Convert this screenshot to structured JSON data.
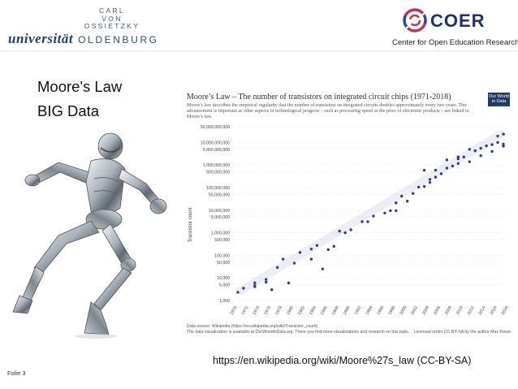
{
  "logo_university": {
    "small_lines": [
      "CARL",
      "VON",
      "OSSIETZKY"
    ],
    "word_main": "universität",
    "word_city": "OLDENBURG"
  },
  "logo_coer": {
    "brand": "COER",
    "subtitle": "Center for Open Education Research"
  },
  "bullets": [
    "Moore's Law",
    "BIG Data"
  ],
  "figure": {
    "title": "Moore’s Law – The number of transistors on integrated circuit chips (1971-2018)",
    "description": "Moore’s law describes the empirical regularity that the number of transistors on integrated circuits doubles approximately every two years. This advancement is important as other aspects of technological progress – such as processing speed or the price of electronic products – are linked to Moore’s law.",
    "badge": [
      "Our World",
      "in Data"
    ],
    "footer_source": "Data source: Wikipedia (https://en.wikipedia.org/wiki/Transistor_count)",
    "footer_note": "The data visualization is available at OurWorldinData.org. There you find more visualizations and research on this topic.",
    "footer_license": "Licensed under CC-BY-SA by the author Max Roser."
  },
  "chart_data": {
    "type": "scatter",
    "ylabel": "Transistor count",
    "y_scale": "log",
    "ylim": [
      1000,
      50000000000
    ],
    "xlim": [
      1970,
      2018
    ],
    "y_ticks": [
      "50,000,000,000",
      "10,000,000,000",
      "5,000,000,000",
      "1,000,000,000",
      "500,000,000",
      "100,000,000",
      "50,000,000",
      "10,000,000",
      "5,000,000",
      "1,000,000",
      "500,000",
      "100,000",
      "50,000",
      "10,000",
      "5,000",
      "1,000"
    ],
    "y_tick_values": [
      50000000000,
      10000000000,
      5000000000,
      1000000000,
      500000000,
      100000000,
      50000000,
      10000000,
      5000000,
      1000000,
      500000,
      100000,
      50000,
      10000,
      5000,
      1000
    ],
    "x_ticks": [
      "1970",
      "1972",
      "1974",
      "1976",
      "1978",
      "1980",
      "1982",
      "1984",
      "1986",
      "1988",
      "1990",
      "1992",
      "1994",
      "1996",
      "1998",
      "2000",
      "2002",
      "2004",
      "2006",
      "2008",
      "2010",
      "2012",
      "2014",
      "2016",
      "2018"
    ],
    "points": [
      {
        "x": 1971,
        "y": 2300
      },
      {
        "x": 1972,
        "y": 3500
      },
      {
        "x": 1974,
        "y": 4500
      },
      {
        "x": 1974,
        "y": 6000
      },
      {
        "x": 1976,
        "y": 6500
      },
      {
        "x": 1976,
        "y": 8500
      },
      {
        "x": 1978,
        "y": 29000
      },
      {
        "x": 1979,
        "y": 68000
      },
      {
        "x": 1981,
        "y": 45000
      },
      {
        "x": 1982,
        "y": 134000
      },
      {
        "x": 1984,
        "y": 190000
      },
      {
        "x": 1985,
        "y": 275000
      },
      {
        "x": 1986,
        "y": 25000
      },
      {
        "x": 1987,
        "y": 180000
      },
      {
        "x": 1988,
        "y": 250000
      },
      {
        "x": 1989,
        "y": 1180000
      },
      {
        "x": 1990,
        "y": 1000000
      },
      {
        "x": 1991,
        "y": 1350000
      },
      {
        "x": 1993,
        "y": 3100000
      },
      {
        "x": 1995,
        "y": 5500000
      },
      {
        "x": 1997,
        "y": 7500000
      },
      {
        "x": 1998,
        "y": 9500000
      },
      {
        "x": 1999,
        "y": 21000000
      },
      {
        "x": 2000,
        "y": 42000000
      },
      {
        "x": 2001,
        "y": 25000000
      },
      {
        "x": 2002,
        "y": 55000000
      },
      {
        "x": 2003,
        "y": 105000000
      },
      {
        "x": 2004,
        "y": 112000000
      },
      {
        "x": 2005,
        "y": 230000000
      },
      {
        "x": 2006,
        "y": 291000000
      },
      {
        "x": 2007,
        "y": 411000000
      },
      {
        "x": 2008,
        "y": 731000000
      },
      {
        "x": 2009,
        "y": 904000000
      },
      {
        "x": 2010,
        "y": 1170000000
      },
      {
        "x": 2010,
        "y": 2300000000
      },
      {
        "x": 2011,
        "y": 2270000000
      },
      {
        "x": 2012,
        "y": 1400000000
      },
      {
        "x": 2012,
        "y": 5000000000
      },
      {
        "x": 2013,
        "y": 4300000000
      },
      {
        "x": 2014,
        "y": 5560000000
      },
      {
        "x": 2015,
        "y": 7100000000
      },
      {
        "x": 2016,
        "y": 8000000000
      },
      {
        "x": 2017,
        "y": 19200000000
      },
      {
        "x": 2017,
        "y": 10000000000
      },
      {
        "x": 2018,
        "y": 6900000000
      },
      {
        "x": 2018,
        "y": 8500000000
      },
      {
        "x": 2018,
        "y": 23600000000
      },
      {
        "x": 2016,
        "y": 4000000000
      },
      {
        "x": 2014,
        "y": 2600000000
      },
      {
        "x": 2010,
        "y": 1900000000
      },
      {
        "x": 2008,
        "y": 1700000000
      },
      {
        "x": 2006,
        "y": 592000000
      },
      {
        "x": 2005,
        "y": 169000000
      },
      {
        "x": 2004,
        "y": 592000000
      },
      {
        "x": 1999,
        "y": 9500000
      },
      {
        "x": 1994,
        "y": 3100000
      },
      {
        "x": 1984,
        "y": 68000
      },
      {
        "x": 1977,
        "y": 3000
      },
      {
        "x": 1980,
        "y": 6000
      },
      {
        "x": 1974,
        "y": 4100
      }
    ],
    "point_color": "#2b3f8f",
    "trend_color": "#9aa3c9"
  },
  "source_link": "https://en.wikipedia.org/wiki/Moore%27s_law (CC-BY-SA)",
  "slide_number": "Folie 3",
  "colors": {
    "uni_blue": "#1f3e73",
    "coer_navy": "#1f2f7a",
    "coer_ring_red": "#c0334d",
    "coer_ring_blue": "#2f4b9a"
  }
}
